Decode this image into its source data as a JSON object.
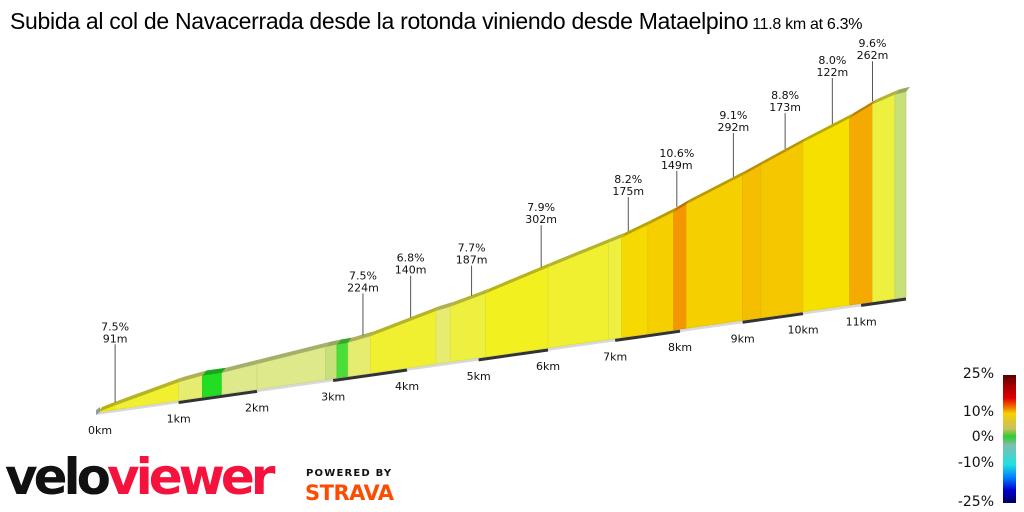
{
  "header": {
    "title": "Subida al col de Navacerrada desde la rotonda viniendo desde Mataelpino",
    "summary": "11.8 km at 6.3%"
  },
  "chart_data": {
    "type": "area",
    "title": "Subida al col de Navacerrada desde la rotonda viniendo desde Mataelpino",
    "subtitle": "11.8 km at 6.3%",
    "x_unit": "km",
    "xlim": [
      0,
      11.8
    ],
    "x_ticks": [
      "0km",
      "1km",
      "2km",
      "3km",
      "4km",
      "5km",
      "6km",
      "7km",
      "8km",
      "9km",
      "10km",
      "11km"
    ],
    "segments": [
      {
        "from_km": 0.0,
        "to_km": 0.2,
        "gradient": 7.5
      },
      {
        "from_km": 0.2,
        "to_km": 1.0,
        "gradient": 6.5
      },
      {
        "from_km": 1.0,
        "to_km": 1.3,
        "gradient": 4.0
      },
      {
        "from_km": 1.3,
        "to_km": 1.55,
        "gradient": 0.0
      },
      {
        "from_km": 1.55,
        "to_km": 2.0,
        "gradient": 3.0
      },
      {
        "from_km": 2.0,
        "to_km": 2.9,
        "gradient": 3.0
      },
      {
        "from_km": 2.9,
        "to_km": 3.05,
        "gradient": 2.0
      },
      {
        "from_km": 3.05,
        "to_km": 3.2,
        "gradient": 0.5
      },
      {
        "from_km": 3.2,
        "to_km": 3.5,
        "gradient": 4.0
      },
      {
        "from_km": 3.5,
        "to_km": 4.4,
        "gradient": 6.5
      },
      {
        "from_km": 4.4,
        "to_km": 4.6,
        "gradient": 4.0
      },
      {
        "from_km": 4.6,
        "to_km": 5.1,
        "gradient": 6.0
      },
      {
        "from_km": 5.1,
        "to_km": 6.0,
        "gradient": 7.0
      },
      {
        "from_km": 6.0,
        "to_km": 6.9,
        "gradient": 6.5
      },
      {
        "from_km": 6.9,
        "to_km": 7.1,
        "gradient": 6.0
      },
      {
        "from_km": 7.1,
        "to_km": 7.5,
        "gradient": 8.2
      },
      {
        "from_km": 7.5,
        "to_km": 7.9,
        "gradient": 8.5
      },
      {
        "from_km": 7.9,
        "to_km": 8.1,
        "gradient": 10.6
      },
      {
        "from_km": 8.1,
        "to_km": 9.0,
        "gradient": 8.5
      },
      {
        "from_km": 9.0,
        "to_km": 9.3,
        "gradient": 9.1
      },
      {
        "from_km": 9.3,
        "to_km": 10.0,
        "gradient": 8.8
      },
      {
        "from_km": 10.0,
        "to_km": 10.8,
        "gradient": 8.0
      },
      {
        "from_km": 10.8,
        "to_km": 11.2,
        "gradient": 9.6
      },
      {
        "from_km": 11.2,
        "to_km": 11.6,
        "gradient": 6.0
      },
      {
        "from_km": 11.6,
        "to_km": 11.8,
        "gradient": 2.0
      }
    ],
    "annotations": [
      {
        "km": 0.21,
        "gradient": "7.5%",
        "length": "91m"
      },
      {
        "km": 3.4,
        "gradient": "7.5%",
        "length": "224m"
      },
      {
        "km": 4.05,
        "gradient": "6.8%",
        "length": "140m"
      },
      {
        "km": 4.9,
        "gradient": "7.7%",
        "length": "187m"
      },
      {
        "km": 5.9,
        "gradient": "7.9%",
        "length": "302m"
      },
      {
        "km": 7.2,
        "gradient": "8.2%",
        "length": "175m"
      },
      {
        "km": 7.95,
        "gradient": "10.6%",
        "length": "149m"
      },
      {
        "km": 8.85,
        "gradient": "9.1%",
        "length": "292m"
      },
      {
        "km": 9.7,
        "gradient": "8.8%",
        "length": "173m"
      },
      {
        "km": 10.5,
        "gradient": "8.0%",
        "length": "122m"
      },
      {
        "km": 11.2,
        "gradient": "9.6%",
        "length": "262m"
      }
    ],
    "legend": {
      "placement": "bottom-right",
      "labels": [
        "25%",
        "10%",
        "0%",
        "-10%",
        "-25%"
      ]
    }
  },
  "branding": {
    "logo_velo": "velo",
    "logo_viewer": "viewer",
    "powered_by": "POWERED BY",
    "strava": "STRAVA",
    "colors": {
      "viewer": "#f5123c",
      "strava": "#fc4c02"
    }
  }
}
